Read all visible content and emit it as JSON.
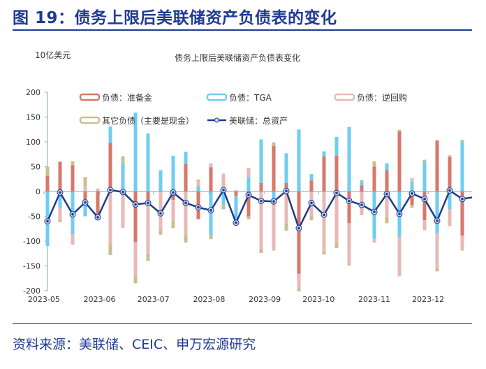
{
  "header": {
    "title": "图 19：债务上限后美联储资产负债表的变化"
  },
  "footer": {
    "source": "资料来源：美联储、CEIC、申万宏源研究"
  },
  "chart_data": {
    "type": "bar",
    "stacked": true,
    "title": "债务上限后美联储资产负债表变化",
    "ylabel": "10亿美元",
    "ylim": [
      -200,
      200
    ],
    "yticks": [
      200,
      150,
      100,
      50,
      0,
      -50,
      -100,
      -150,
      -200
    ],
    "xtick_labels": [
      "2023-05",
      "2023-06",
      "2023-07",
      "2023-08",
      "2023-09",
      "2023-10",
      "2023-11",
      "2023-12"
    ],
    "xtick_dates": [
      "2023-05-01",
      "2023-06-01",
      "2023-07-01",
      "2023-08-01",
      "2023-09-01",
      "2023-10-01",
      "2023-11-01",
      "2023-12-01"
    ],
    "x": [
      "2023-05-03",
      "2023-05-10",
      "2023-05-17",
      "2023-05-24",
      "2023-05-31",
      "2023-06-07",
      "2023-06-14",
      "2023-06-21",
      "2023-06-28",
      "2023-07-05",
      "2023-07-12",
      "2023-07-19",
      "2023-07-26",
      "2023-08-02",
      "2023-08-09",
      "2023-08-16",
      "2023-08-23",
      "2023-08-30",
      "2023-09-06",
      "2023-09-13",
      "2023-09-20",
      "2023-09-27",
      "2023-10-04",
      "2023-10-11",
      "2023-10-18",
      "2023-10-25",
      "2023-11-01",
      "2023-11-08",
      "2023-11-15",
      "2023-11-22",
      "2023-11-29",
      "2023-12-06",
      "2023-12-13",
      "2023-12-20",
      "2023-12-27"
    ],
    "legend_position": "top",
    "grid": false,
    "series": [
      {
        "name": "负债：准备金",
        "kind": "bar",
        "color": "#d9776a",
        "values": [
          32,
          60,
          53,
          -20,
          -50,
          98,
          0,
          -102,
          -17,
          0,
          -17,
          55,
          -56,
          49,
          8,
          -9,
          -50,
          17,
          92,
          17,
          -166,
          22,
          71,
          72,
          -64,
          12,
          50,
          43,
          121,
          -27,
          -58,
          103,
          69,
          -89,
          null
        ]
      },
      {
        "name": "负债：TGA",
        "kind": "bar",
        "color": "#6fcdf2",
        "values": [
          -110,
          -33,
          -86,
          -30,
          -8,
          33,
          56,
          159,
          117,
          43,
          72,
          25,
          11,
          -90,
          -27,
          -50,
          29,
          88,
          -20,
          60,
          125,
          13,
          10,
          38,
          130,
          7,
          -95,
          14,
          -92,
          20,
          60,
          -85,
          -36,
          101,
          null
        ]
      },
      {
        "name": "负债：逆回购",
        "kind": "bar",
        "color": "#e8b9b6",
        "values": [
          0,
          -23,
          -21,
          11,
          6,
          -106,
          -73,
          -67,
          -108,
          -78,
          -42,
          -87,
          9,
          8,
          28,
          3,
          19,
          -115,
          -99,
          -63,
          -29,
          -50,
          -120,
          -103,
          -82,
          -48,
          -8,
          -52,
          -79,
          7,
          -20,
          -70,
          -34,
          -30,
          null
        ]
      },
      {
        "name": "其它负债（主要是现金）",
        "kind": "bar",
        "color": "#c9bf90",
        "values": [
          18,
          -6,
          8,
          18,
          0,
          -22,
          15,
          -16,
          -15,
          -9,
          -15,
          -16,
          4,
          -6,
          -9,
          -7,
          -6,
          -9,
          7,
          -16,
          -6,
          -8,
          -7,
          -11,
          -3,
          4,
          11,
          -12,
          3,
          -6,
          4,
          -6,
          4,
          3,
          null
        ]
      },
      {
        "name": "美联储：总资产",
        "kind": "line",
        "color": "#1f3a8a",
        "values": [
          -60,
          -2,
          -46,
          -22,
          -52,
          3,
          -1,
          -26,
          -23,
          -44,
          -2,
          -23,
          -32,
          -38,
          3,
          -63,
          -7,
          -19,
          -20,
          1,
          -74,
          -23,
          -47,
          -3,
          -19,
          -27,
          -41,
          -5,
          -45,
          -4,
          -15,
          -59,
          2,
          -15,
          -12
        ]
      }
    ]
  }
}
